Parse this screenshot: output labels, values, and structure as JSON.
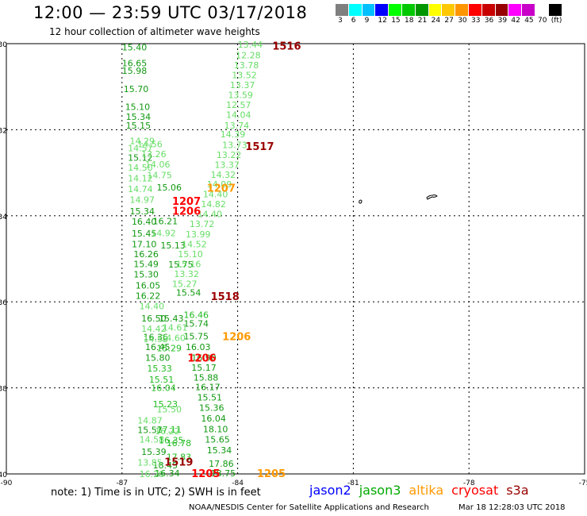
{
  "header": {
    "title": "12:00 — 23:59 UTC 03/17/2018",
    "subtitle": "12 hour collection of altimeter wave heights"
  },
  "colorbar": {
    "colors": [
      "#7f7f7f",
      "#00ffff",
      "#00c0ff",
      "#0000ff",
      "#00ff00",
      "#00c800",
      "#009600",
      "#ffff00",
      "#ffc800",
      "#ff9600",
      "#ff0000",
      "#c80000",
      "#960000",
      "#ff00ff",
      "#c800c8",
      "#ffffff",
      "#000000"
    ],
    "labels": [
      "3",
      "6",
      "9",
      "12",
      "15",
      "18",
      "21",
      "24",
      "27",
      "30",
      "33",
      "36",
      "39",
      "42",
      "45",
      "70",
      "(ft)"
    ]
  },
  "axes": {
    "lat_labels": [
      "-30",
      "-32",
      "-34",
      "-36",
      "-38",
      "-40"
    ],
    "lon_labels": [
      "-90",
      "-87",
      "-84",
      "-81",
      "-78",
      "-75"
    ]
  },
  "map_data": {
    "colors": {
      "light": "#66dd66",
      "mid": "#22bb22",
      "dark": "#119911",
      "cryosat": "#ff0000",
      "altika": "#ff9900",
      "s3a": "#990000"
    },
    "time_labels": [
      {
        "text": "1516",
        "lon": -83.1,
        "lat": -30.05,
        "color": "s3a"
      },
      {
        "text": "1517",
        "lon": -83.8,
        "lat": -32.38,
        "color": "s3a"
      },
      {
        "text": "1207",
        "lon": -84.8,
        "lat": -33.35,
        "color": "altika"
      },
      {
        "text": "1207",
        "lon": -85.7,
        "lat": -33.65,
        "color": "cryosat"
      },
      {
        "text": "1206",
        "lon": -85.7,
        "lat": -33.88,
        "color": "cryosat"
      },
      {
        "text": "1518",
        "lon": -84.7,
        "lat": -35.87,
        "color": "s3a"
      },
      {
        "text": "1206",
        "lon": -84.4,
        "lat": -36.8,
        "color": "altika"
      },
      {
        "text": "1206",
        "lon": -85.3,
        "lat": -37.3,
        "color": "cryosat"
      },
      {
        "text": "1519",
        "lon": -85.9,
        "lat": -39.71,
        "color": "s3a"
      },
      {
        "text": "1205",
        "lon": -85.2,
        "lat": -39.98,
        "color": "cryosat"
      },
      {
        "text": "1205",
        "lon": -83.5,
        "lat": -39.98,
        "color": "altika"
      }
    ],
    "tracks": [
      {
        "color": "dark",
        "points": [
          [
            "15.40",
            -87.0,
            -30.08
          ],
          [
            "16.65",
            -87.0,
            -30.45
          ],
          [
            "15.98",
            -87.0,
            -30.63
          ],
          [
            "15.70",
            -86.96,
            -31.05
          ],
          [
            "15.10",
            -86.92,
            -31.47
          ],
          [
            "15.34",
            -86.9,
            -31.7
          ],
          [
            "15.15",
            -86.9,
            -31.9
          ],
          [
            "15.12",
            -86.85,
            -32.65
          ],
          [
            "15.06",
            -86.1,
            -33.34
          ],
          [
            "15.34",
            -86.8,
            -33.89
          ],
          [
            "16.40",
            -86.75,
            -34.13
          ],
          [
            "16.21",
            -86.2,
            -34.12
          ],
          [
            "15.45",
            -86.75,
            -34.41
          ],
          [
            "17.10",
            -86.75,
            -34.66
          ],
          [
            "15.13",
            -86.0,
            -34.69
          ],
          [
            "16.26",
            -86.7,
            -34.89
          ],
          [
            "15.49",
            -86.7,
            -35.12
          ],
          [
            "15.75",
            -85.8,
            -35.13
          ],
          [
            "15.30",
            -86.7,
            -35.36
          ],
          [
            "16.05",
            -86.65,
            -35.62
          ],
          [
            "16.22",
            -86.65,
            -35.86
          ],
          [
            "15.54",
            -85.6,
            -35.78
          ],
          [
            "16.50",
            -86.5,
            -36.38
          ],
          [
            "15.43",
            -86.05,
            -36.38
          ],
          [
            "15.74",
            -85.4,
            -36.5
          ],
          [
            "16.36",
            -86.45,
            -36.82
          ],
          [
            "15.75",
            -85.4,
            -36.8
          ],
          [
            "16.45",
            -86.4,
            -37.05
          ],
          [
            "16.03",
            -85.35,
            -37.05
          ],
          [
            "15.80",
            -86.4,
            -37.3
          ],
          [
            "16.90",
            -85.2,
            -37.3
          ],
          [
            "15.17",
            -85.2,
            -37.53
          ],
          [
            "15.88",
            -85.15,
            -37.76
          ],
          [
            "16.17",
            -85.1,
            -37.98
          ],
          [
            "15.51",
            -85.05,
            -38.22
          ],
          [
            "15.36",
            -85.0,
            -38.46
          ],
          [
            "16.04",
            -84.95,
            -38.71
          ],
          [
            "18.10",
            -84.9,
            -38.96
          ],
          [
            "15.57",
            -86.6,
            -38.98
          ],
          [
            "15.65",
            -84.85,
            -39.2
          ],
          [
            "15.39",
            -86.5,
            -39.48
          ],
          [
            "15.34",
            -84.8,
            -39.45
          ],
          [
            "18.45",
            -86.2,
            -39.8
          ],
          [
            "17.86",
            -84.75,
            -39.76
          ],
          [
            "16.34",
            -86.15,
            -39.98
          ],
          [
            "18.75",
            -84.7,
            -39.98
          ]
        ]
      },
      {
        "color": "light",
        "points": [
          [
            "13.44",
            -84.0,
            -30.02
          ],
          [
            "12.28",
            -84.05,
            -30.27
          ],
          [
            "13.78",
            -84.1,
            -30.5
          ],
          [
            "13.52",
            -84.15,
            -30.73
          ],
          [
            "13.37",
            -84.2,
            -30.96
          ],
          [
            "13.59",
            -84.25,
            -31.19
          ],
          [
            "12.57",
            -84.3,
            -31.42
          ],
          [
            "14.04",
            -84.3,
            -31.65
          ],
          [
            "13.74",
            -84.35,
            -31.9
          ],
          [
            "14.39",
            -84.45,
            -32.1
          ],
          [
            "13.73",
            -84.4,
            -32.35
          ],
          [
            "13.22",
            -84.55,
            -32.58
          ],
          [
            "13.37",
            -84.6,
            -32.81
          ],
          [
            "14.32",
            -84.7,
            -33.04
          ],
          [
            "14.09",
            -84.8,
            -33.27
          ],
          [
            "14.40",
            -84.9,
            -33.5
          ],
          [
            "14.82",
            -84.95,
            -33.73
          ],
          [
            "14.40",
            -85.05,
            -33.96
          ],
          [
            "13.72",
            -85.25,
            -34.19
          ],
          [
            "13.99",
            -85.35,
            -34.43
          ],
          [
            "14.52",
            -85.45,
            -34.66
          ],
          [
            "15.10",
            -85.55,
            -34.89
          ],
          [
            "15.16",
            -85.6,
            -35.12
          ],
          [
            "13.32",
            -85.65,
            -35.35
          ],
          [
            "15.27",
            -85.7,
            -35.58
          ],
          [
            "14.92",
            -86.25,
            -34.4
          ],
          [
            "14.75",
            -86.35,
            -33.05
          ],
          [
            "14.06",
            -86.4,
            -32.8
          ],
          [
            "13.26",
            -86.5,
            -32.56
          ],
          [
            "14.56",
            -86.6,
            -32.33
          ],
          [
            "14.29",
            -86.8,
            -32.26
          ],
          [
            "14.57",
            -86.85,
            -32.43
          ],
          [
            "14.50",
            -86.85,
            -32.88
          ],
          [
            "14.12",
            -86.85,
            -33.13
          ],
          [
            "14.74",
            -86.85,
            -33.38
          ],
          [
            "14.97",
            -86.8,
            -33.63
          ],
          [
            "14.40",
            -86.55,
            -36.1
          ],
          [
            "14.42",
            -86.5,
            -36.62
          ],
          [
            "14.53",
            -86.45,
            -36.86
          ],
          [
            "14.61",
            -85.95,
            -36.6
          ],
          [
            "14.60",
            -86.0,
            -36.84
          ],
          [
            "14.87",
            -86.6,
            -38.75
          ],
          [
            "14.58",
            -86.55,
            -39.2
          ],
          [
            "13.85",
            -86.6,
            -39.73
          ],
          [
            "16.20",
            -86.55,
            -40.0
          ],
          [
            "16.22",
            -86.15,
            -39.0
          ],
          [
            "15.50",
            -86.1,
            -38.5
          ]
        ]
      },
      {
        "color": "mid",
        "points": [
          [
            "16.78",
            -85.85,
            -39.28
          ],
          [
            "17.83",
            -85.85,
            -39.6
          ],
          [
            "16.35",
            -86.05,
            -39.22
          ],
          [
            "17.11",
            -86.1,
            -38.97
          ],
          [
            "15.23",
            -86.2,
            -38.38
          ],
          [
            "16.04",
            -86.25,
            -38.0
          ],
          [
            "15.51",
            -86.3,
            -37.8
          ],
          [
            "15.33",
            -86.35,
            -37.55
          ],
          [
            "15.29",
            -86.1,
            -37.08
          ],
          [
            "16.46",
            -85.4,
            -36.3
          ]
        ]
      }
    ]
  },
  "note": "note:  1) Time is in UTC;  2) SWH is in feet",
  "legend": [
    {
      "label": "jason2",
      "color": "#0000ff"
    },
    {
      "label": "jason3",
      "color": "#00aa00"
    },
    {
      "label": "altika",
      "color": "#ff9900"
    },
    {
      "label": "cryosat",
      "color": "#ff0000"
    },
    {
      "label": "s3a",
      "color": "#990000"
    }
  ],
  "footer": {
    "center": "NOAA/NESDIS Center for Satellite Applications and Research",
    "timestamp": "Mar 18 12:28:03 UTC 2018"
  }
}
